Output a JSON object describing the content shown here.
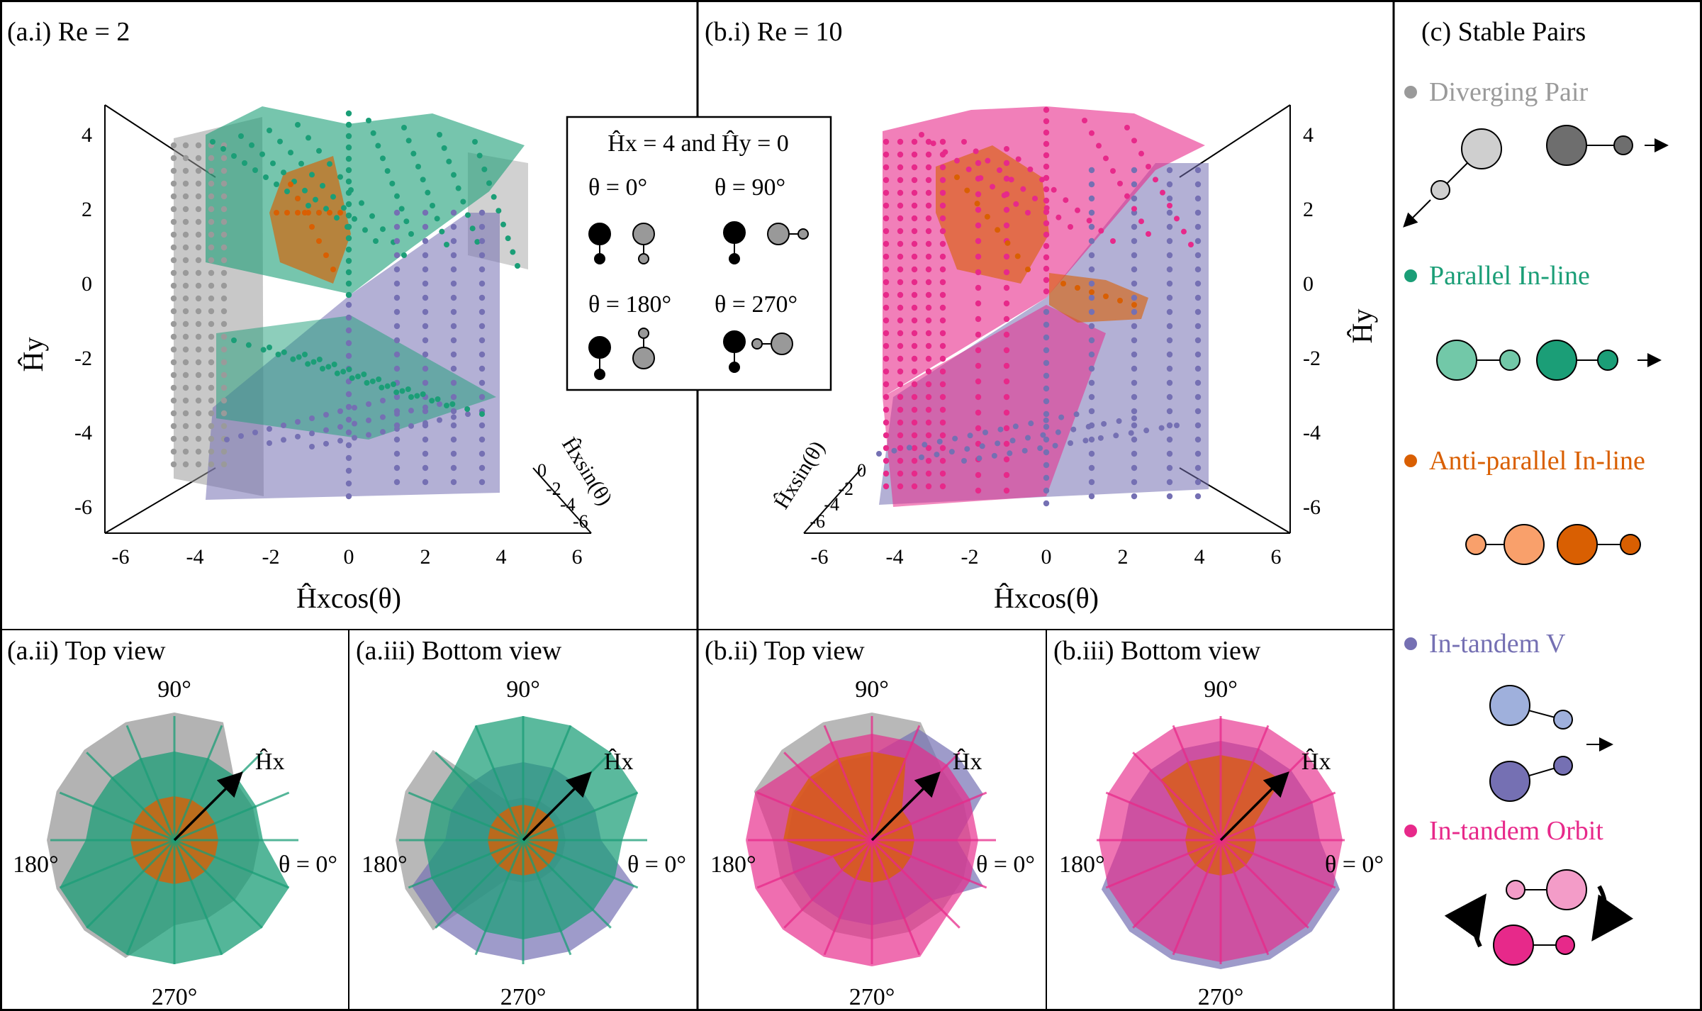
{
  "panels": {
    "a_i": {
      "label": "(a.i) Re = 2"
    },
    "b_i": {
      "label": "(b.i) Re = 10"
    },
    "a_ii": {
      "label": "(a.ii) Top view"
    },
    "a_iii": {
      "label": "(a.iii) Bottom view"
    },
    "b_ii": {
      "label": "(b.ii) Top view"
    },
    "b_iii": {
      "label": "(b.iii) Bottom view"
    },
    "c": {
      "label": "(c) Stable Pairs"
    }
  },
  "axes3d": {
    "hy_ticks": [
      "4",
      "2",
      "0",
      "-2",
      "-4",
      "-6"
    ],
    "hx_ticks": [
      "-6",
      "-4",
      "-2",
      "0",
      "2",
      "4",
      "6"
    ],
    "hsin_ticks": [
      "0",
      "-2",
      "-4",
      "-6"
    ],
    "hy_label": "Ĥy",
    "hx_label_main": "Ĥx",
    "hx_label_func": "cos(θ)",
    "hsin_label_main": "Ĥx",
    "hsin_label_func": "sin(θ)",
    "hsin_label_full": "Ĥxsin(θ)"
  },
  "polar": {
    "label_90": "90°",
    "label_180": "180°",
    "label_270": "270°",
    "label_0": "θ = 0°",
    "arrow_label": "Ĥx"
  },
  "inset": {
    "title": "Ĥx = 4 and Ĥy = 0",
    "theta_labels": [
      "θ = 0°",
      "θ = 90°",
      "θ = 180°",
      "θ = 270°"
    ]
  },
  "legend": {
    "items": [
      {
        "label": "Diverging Pair",
        "color": "#9a9a9a"
      },
      {
        "label": "Parallel In-line",
        "color": "#1b9e77"
      },
      {
        "label": "Anti-parallel In-line",
        "color": "#d95f02"
      },
      {
        "label": "In-tandem V",
        "color": "#7570b3"
      },
      {
        "label": "In-tandem Orbit",
        "color": "#e7298a"
      }
    ]
  },
  "colors": {
    "diverging": "#9a9a9a",
    "parallel": "#1b9e77",
    "antiparallel": "#d95f02",
    "tandem_v": "#7570b3",
    "orbit": "#e7298a"
  }
}
